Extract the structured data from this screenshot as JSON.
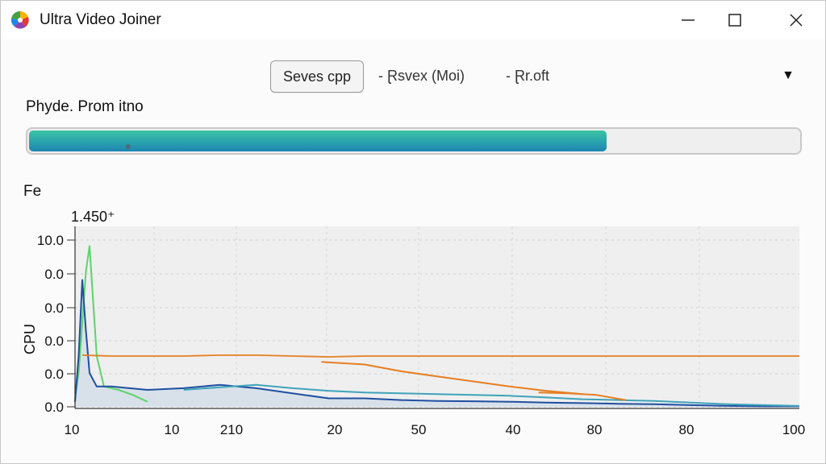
{
  "window": {
    "title": "Ultra Video Joiner",
    "controls": {
      "minimize": "—",
      "maximize": "☐",
      "close": "✕"
    }
  },
  "toolbar": {
    "button_label": "Seves cpp",
    "item_1": "- Ɽsvex (Moi)",
    "item_2": "- Ɽr.oft",
    "dropdown_icon": "▼"
  },
  "progress": {
    "label": "Phyde. Prom itno",
    "fraction": 0.75
  },
  "section": {
    "label": "Fe"
  },
  "chart_header_value": "1.450⁺",
  "chart_data": {
    "type": "line",
    "ylabel": "CPU",
    "ytick_labels": [
      "10.0",
      "0.0",
      "0.0",
      "0.0",
      "0.0",
      "0.0"
    ],
    "xtick_labels": [
      "10",
      "10",
      "210",
      "20",
      "50",
      "40",
      "80",
      "80",
      "100"
    ],
    "grid": true,
    "series": [
      {
        "color": "#5bd46a",
        "x": [
          0,
          0.5,
          1,
          1.5,
          2,
          3,
          4,
          6,
          8,
          10
        ],
        "y": [
          0.5,
          2,
          5,
          8,
          9.5,
          3,
          1.2,
          1,
          0.7,
          0.3
        ]
      },
      {
        "color": "#1f4fa0",
        "x": [
          0,
          0.5,
          1,
          1.5,
          2,
          3,
          5,
          10,
          15,
          20,
          25,
          30,
          35,
          40,
          45,
          50,
          55,
          60,
          65,
          70,
          75,
          80,
          85,
          90,
          95,
          100
        ],
        "y": [
          0.3,
          3,
          7.5,
          4.5,
          2,
          1.2,
          1.2,
          1.0,
          1.1,
          1.3,
          1.1,
          0.8,
          0.5,
          0.5,
          0.4,
          0.35,
          0.33,
          0.3,
          0.25,
          0.22,
          0.18,
          0.15,
          0.1,
          0.05,
          0.03,
          0.03
        ]
      },
      {
        "color": "#3ea3ba",
        "x": [
          15,
          20,
          25,
          30,
          35,
          40,
          45,
          50,
          55,
          60,
          65,
          70,
          75,
          80,
          85,
          90,
          95,
          100
        ],
        "y": [
          1.0,
          1.15,
          1.3,
          1.1,
          0.95,
          0.85,
          0.8,
          0.75,
          0.7,
          0.65,
          0.55,
          0.45,
          0.4,
          0.35,
          0.25,
          0.15,
          0.1,
          0.05
        ]
      },
      {
        "color": "#e67e22",
        "x": [
          1,
          5,
          10,
          15,
          20,
          25,
          30,
          35,
          40,
          45,
          50,
          55,
          60,
          65,
          70,
          75,
          80,
          85,
          90,
          95,
          100
        ],
        "y": [
          3.05,
          3.0,
          3.0,
          3.0,
          3.05,
          3.05,
          3.0,
          2.95,
          3.0,
          3.0,
          3.0,
          3.0,
          3.0,
          3.0,
          3.0,
          3.0,
          3.0,
          3.0,
          3.0,
          3.0,
          3.0
        ]
      },
      {
        "color": "#e67e22",
        "x": [
          34,
          40,
          45,
          50,
          55,
          60,
          65,
          70
        ],
        "y": [
          2.65,
          2.5,
          2.1,
          1.8,
          1.5,
          1.2,
          0.95,
          0.75
        ]
      },
      {
        "color": "#e67e22",
        "x": [
          64,
          68,
          72,
          76
        ],
        "y": [
          0.85,
          0.8,
          0.7,
          0.4
        ]
      }
    ]
  }
}
